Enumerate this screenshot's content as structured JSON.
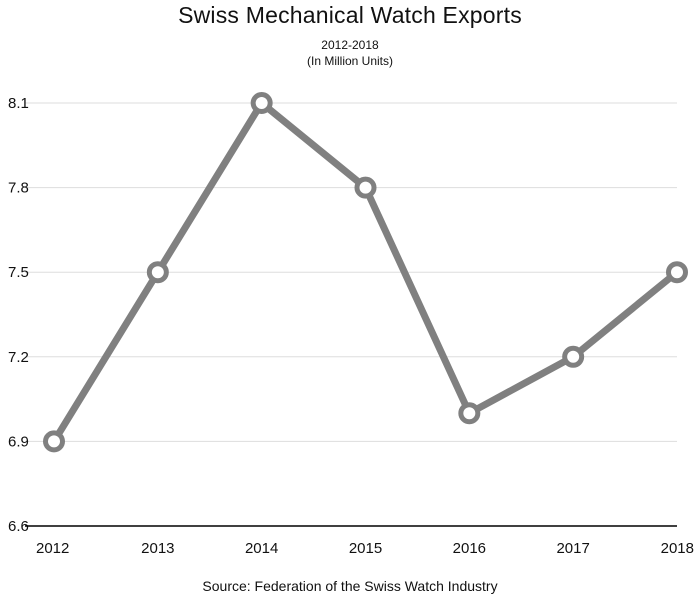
{
  "chart_data": {
    "type": "line",
    "title": "Swiss Mechanical Watch Exports",
    "subtitle_lines": [
      "2012-2018",
      "(In Million Units)"
    ],
    "source": "Source: Federation of the Swiss Watch Industry",
    "x": [
      "2012",
      "2013",
      "2014",
      "2015",
      "2016",
      "2017",
      "2018"
    ],
    "series": [
      {
        "values": [
          6.9,
          7.5,
          8.1,
          7.8,
          7.0,
          7.2,
          7.5
        ],
        "color": "#808080"
      }
    ],
    "y_ticks": [
      "6.6",
      "6.9",
      "7.2",
      "7.5",
      "7.8",
      "8.1"
    ],
    "ylim": [
      6.6,
      8.2
    ],
    "grid": true,
    "xlabel": "",
    "ylabel": ""
  }
}
